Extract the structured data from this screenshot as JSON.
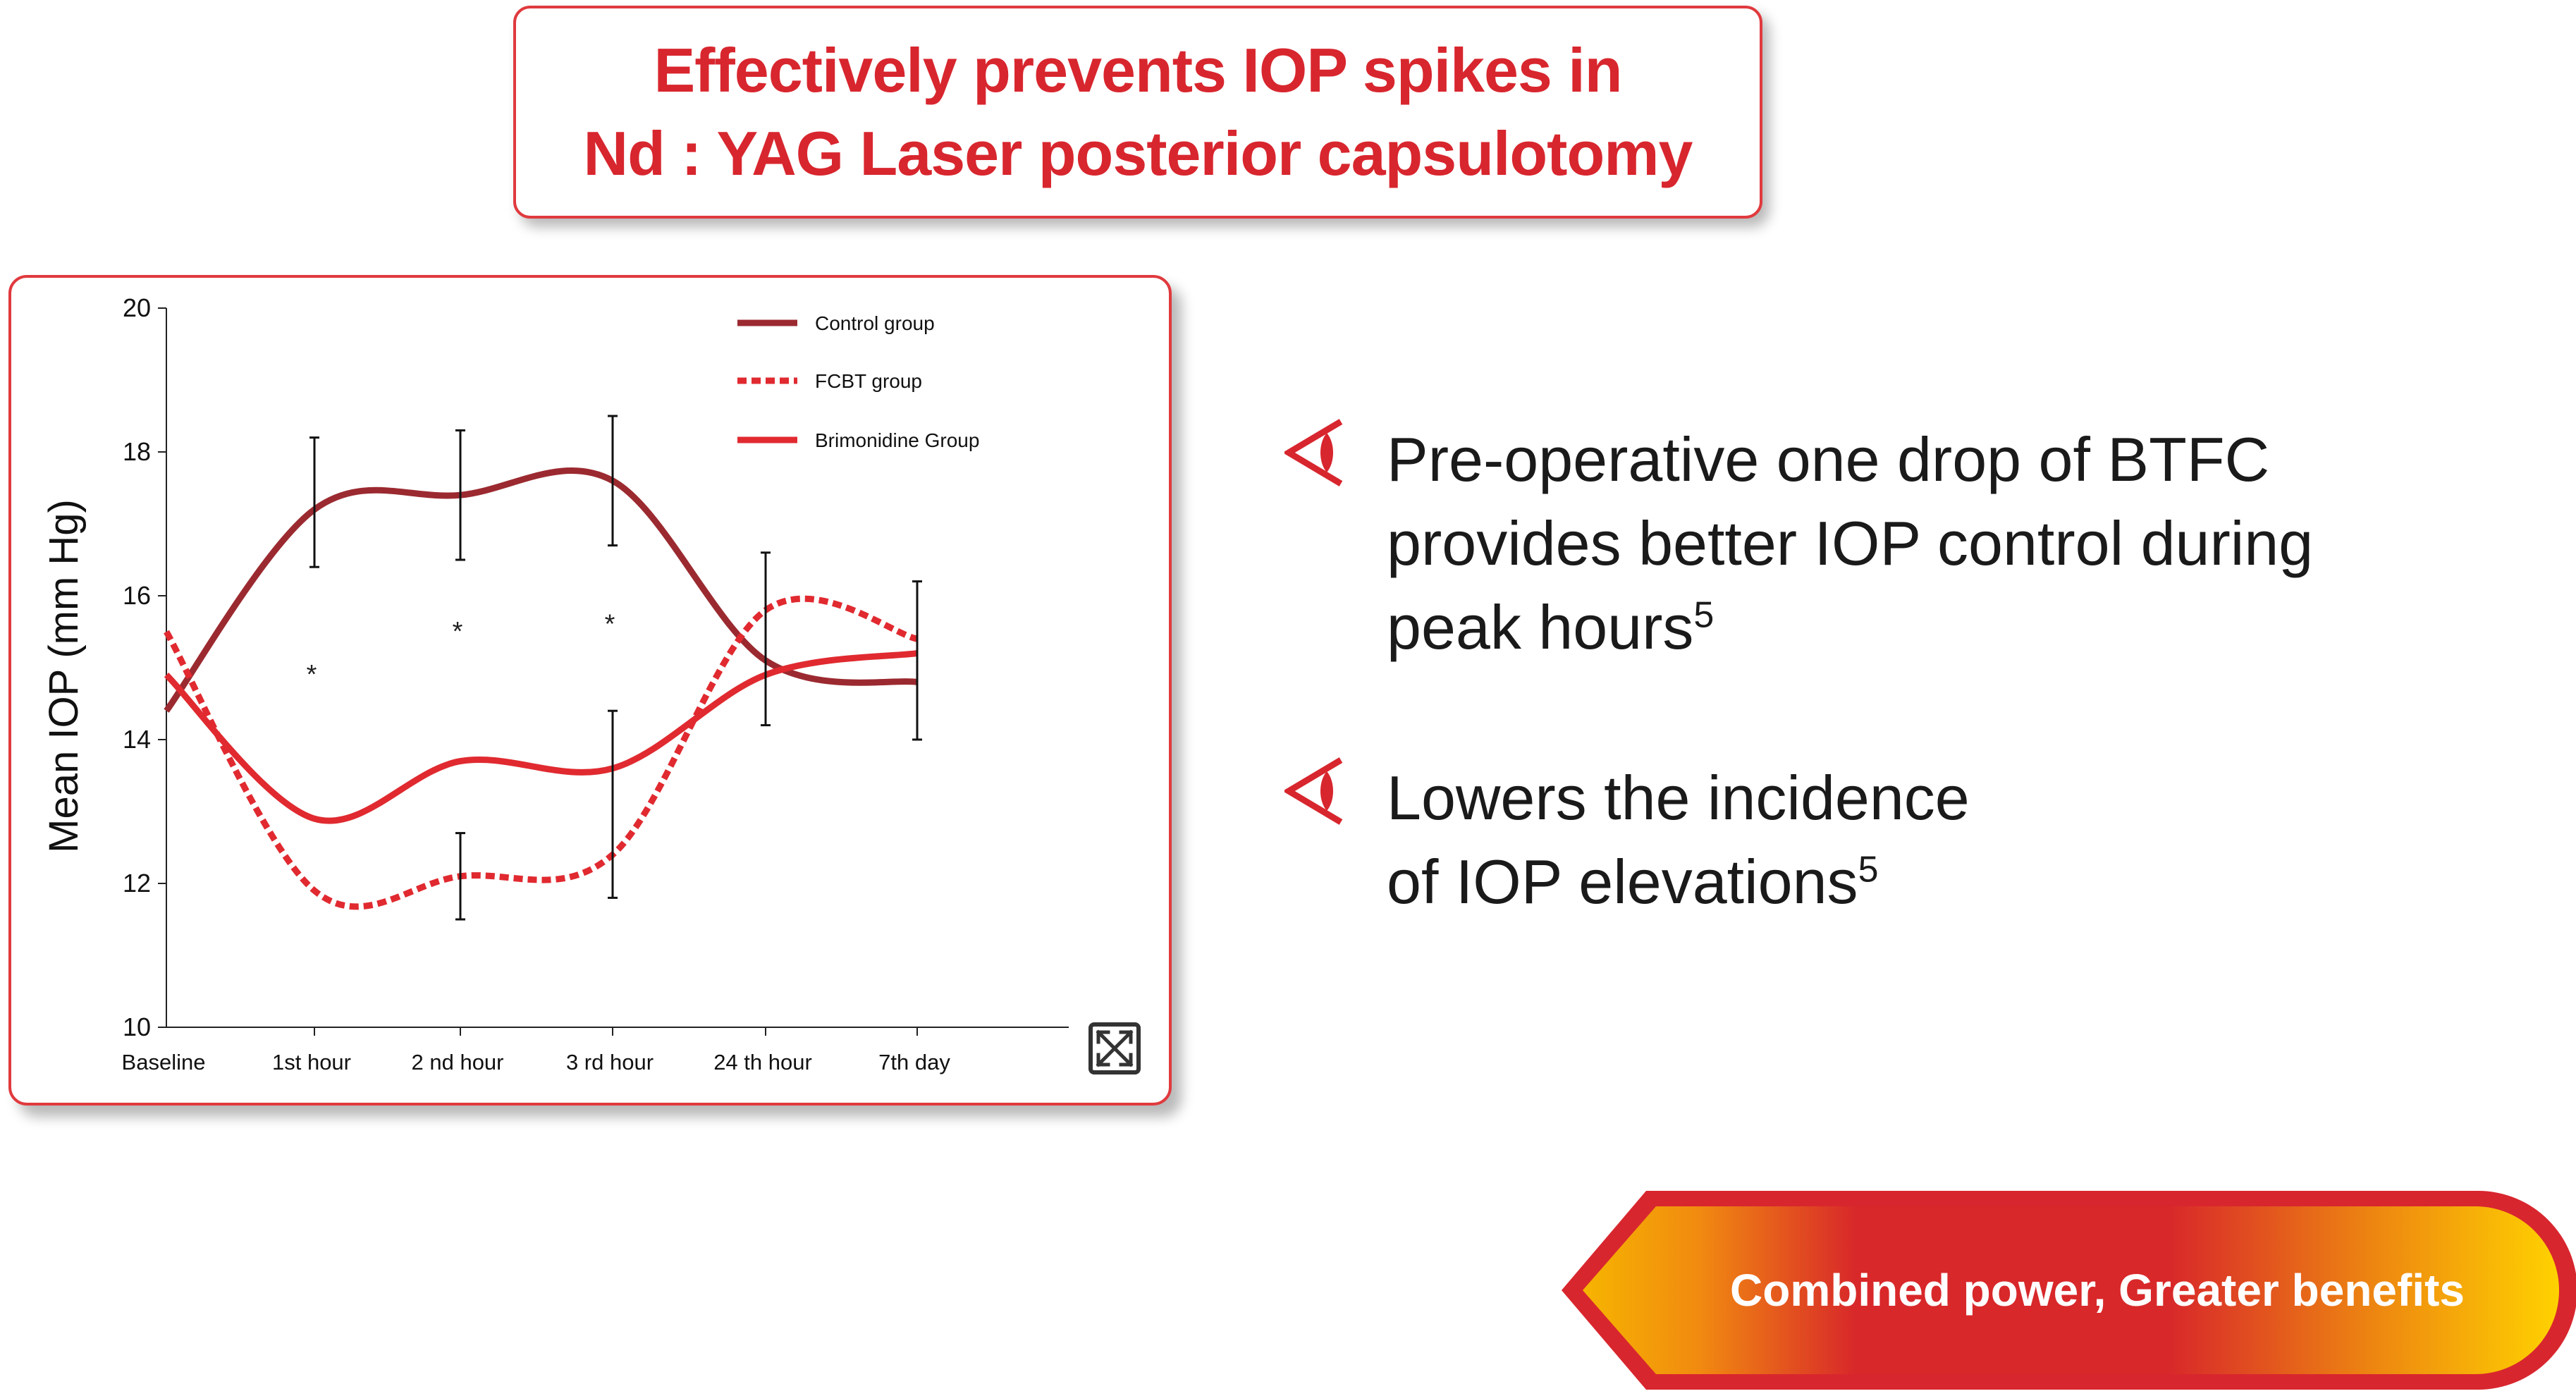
{
  "header": {
    "title_line1": "Effectively prevents IOP spikes in",
    "title_line2": "Nd : YAG Laser posterior capsulotomy"
  },
  "chart_data": {
    "type": "line",
    "ylabel": "Mean IOP (mm Hg)",
    "xlabel": "",
    "ylim": [
      10,
      20
    ],
    "yticks": [
      10,
      12,
      14,
      16,
      18,
      20
    ],
    "categories": [
      "Baseline",
      "1st hour",
      "2 nd hour",
      "3 rd hour",
      "24 th hour",
      "7th day"
    ],
    "legend_position": "top-right",
    "series": [
      {
        "name": "Control group",
        "color": "#9b2a30",
        "style": "solid",
        "values": [
          14.4,
          17.2,
          17.4,
          17.6,
          15.1,
          14.8
        ],
        "error_low": [
          null,
          16.4,
          16.5,
          16.7,
          14.2,
          14.0
        ],
        "error_high": [
          null,
          18.2,
          18.3,
          18.5,
          16.6,
          16.2
        ]
      },
      {
        "name": "FCBT group",
        "color": "#e02a30",
        "style": "dashed",
        "values": [
          15.5,
          11.9,
          12.1,
          12.4,
          15.8,
          15.4
        ],
        "error_low": [
          null,
          null,
          11.5,
          11.8,
          null,
          null
        ],
        "error_high": [
          null,
          null,
          12.7,
          14.4,
          null,
          null
        ]
      },
      {
        "name": "Brimonidine Group",
        "color": "#e02a30",
        "style": "solid",
        "values": [
          14.9,
          12.9,
          13.7,
          13.6,
          14.9,
          15.2
        ]
      }
    ],
    "significance_marks": [
      {
        "category": "1st hour",
        "label": "*",
        "y": 15.0
      },
      {
        "category": "2 nd hour",
        "label": "*",
        "y": 15.6
      },
      {
        "category": "3 rd hour",
        "label": "*",
        "y": 15.7
      }
    ]
  },
  "bullets": [
    {
      "icon": "eye-arrow-icon",
      "lines": [
        "Pre-operative one drop of BTFC",
        "provides better IOP control during",
        "peak hours"
      ],
      "ref": "5"
    },
    {
      "icon": "eye-arrow-icon",
      "lines": [
        "Lowers the incidence",
        "of IOP elevations"
      ],
      "ref": "5"
    }
  ],
  "banner": {
    "label": "Combined power, Greater benefits"
  },
  "colors": {
    "accent": "#d8262e",
    "control": "#9b2a30",
    "banner_orange": "#f7a600"
  }
}
